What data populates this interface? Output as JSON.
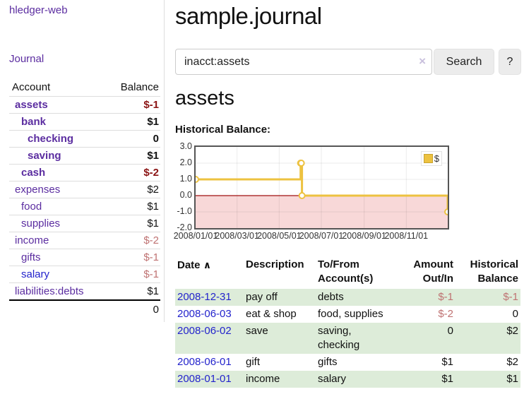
{
  "app": {
    "title": "hledger-web"
  },
  "sidebar": {
    "journal_link": "Journal",
    "table": {
      "account_header": "Account",
      "balance_header": "Balance",
      "accounts": [
        {
          "name": "assets",
          "balance": "$-1"
        },
        {
          "name": "bank",
          "balance": "$1"
        },
        {
          "name": "checking",
          "balance": "0"
        },
        {
          "name": "saving",
          "balance": "$1"
        },
        {
          "name": "cash",
          "balance": "$-2"
        },
        {
          "name": "expenses",
          "balance": "$2"
        },
        {
          "name": "food",
          "balance": "$1"
        },
        {
          "name": "supplies",
          "balance": "$1"
        },
        {
          "name": "income",
          "balance": "$-2"
        },
        {
          "name": "gifts",
          "balance": "$-1"
        },
        {
          "name": "salary",
          "balance": "$-1"
        },
        {
          "name": "liabilities:debts",
          "balance": "$1"
        }
      ],
      "total": "0"
    }
  },
  "header": {
    "title": "sample.journal"
  },
  "search": {
    "value": "inacct:assets",
    "button_label": "Search",
    "help_label": "?"
  },
  "icons": {
    "clear": "×",
    "sort_ascending": "∧"
  },
  "account_page": {
    "heading": "assets",
    "chart_label": "Historical Balance:"
  },
  "colors": {
    "link_purple": "#5b2da0",
    "link_blue": "#2323cc",
    "negative_dark": "#8b1414",
    "negative_light": "#bf7272",
    "row_stripe_green": "#ddecd9",
    "series_gold": "#edc240",
    "negative_region_pink": "#f8d8d8",
    "zero_line_maroon": "#a01010"
  },
  "chart_data": {
    "type": "line",
    "steps": true,
    "title": "Historical Balance:",
    "series": [
      {
        "name": "$",
        "color": "#edc240",
        "points": [
          [
            "2008-01-01",
            1
          ],
          [
            "2008-06-01",
            2
          ],
          [
            "2008-06-02",
            2
          ],
          [
            "2008-06-03",
            0
          ],
          [
            "2008-12-31",
            -1
          ]
        ]
      }
    ],
    "xlim": [
      "2008-01-01",
      "2008-12-31"
    ],
    "ylim": [
      -2,
      3
    ],
    "yticks": [
      "3.0",
      "2.0",
      "1.0",
      "0.0",
      "-1.0",
      "-2.0"
    ],
    "xticks": [
      {
        "date": "2008-01-01",
        "label": "2008/01/01"
      },
      {
        "date": "2008-03-01",
        "label": "2008/03/01"
      },
      {
        "date": "2008-05-01",
        "label": "2008/05/01"
      },
      {
        "date": "2008-07-01",
        "label": "2008/07/01"
      },
      {
        "date": "2008-09-01",
        "label": "2008/09/01"
      },
      {
        "date": "2008-11-01",
        "label": "2008/11/01"
      }
    ],
    "grid": true,
    "legend_position": "top-right",
    "negative_region_color": "#f8d8d8",
    "zero_line_color": "#a01010"
  },
  "transactions": {
    "columns": {
      "date": "Date",
      "description": "Description",
      "tofrom": "To/From Account(s)",
      "amount": "Amount Out/In",
      "balance": "Historical Balance"
    },
    "rows": [
      {
        "date": "2008-12-31",
        "description": "pay off",
        "accounts": "debts",
        "amount": "$-1",
        "balance": "$-1"
      },
      {
        "date": "2008-06-03",
        "description": "eat & shop",
        "accounts": "food, supplies",
        "amount": "$-2",
        "balance": "0"
      },
      {
        "date": "2008-06-02",
        "description": "save",
        "accounts": "saving, checking",
        "amount": "0",
        "balance": "$2"
      },
      {
        "date": "2008-06-01",
        "description": "gift",
        "accounts": "gifts",
        "amount": "$1",
        "balance": "$2"
      },
      {
        "date": "2008-01-01",
        "description": "income",
        "accounts": "salary",
        "amount": "$1",
        "balance": "$1"
      }
    ]
  }
}
